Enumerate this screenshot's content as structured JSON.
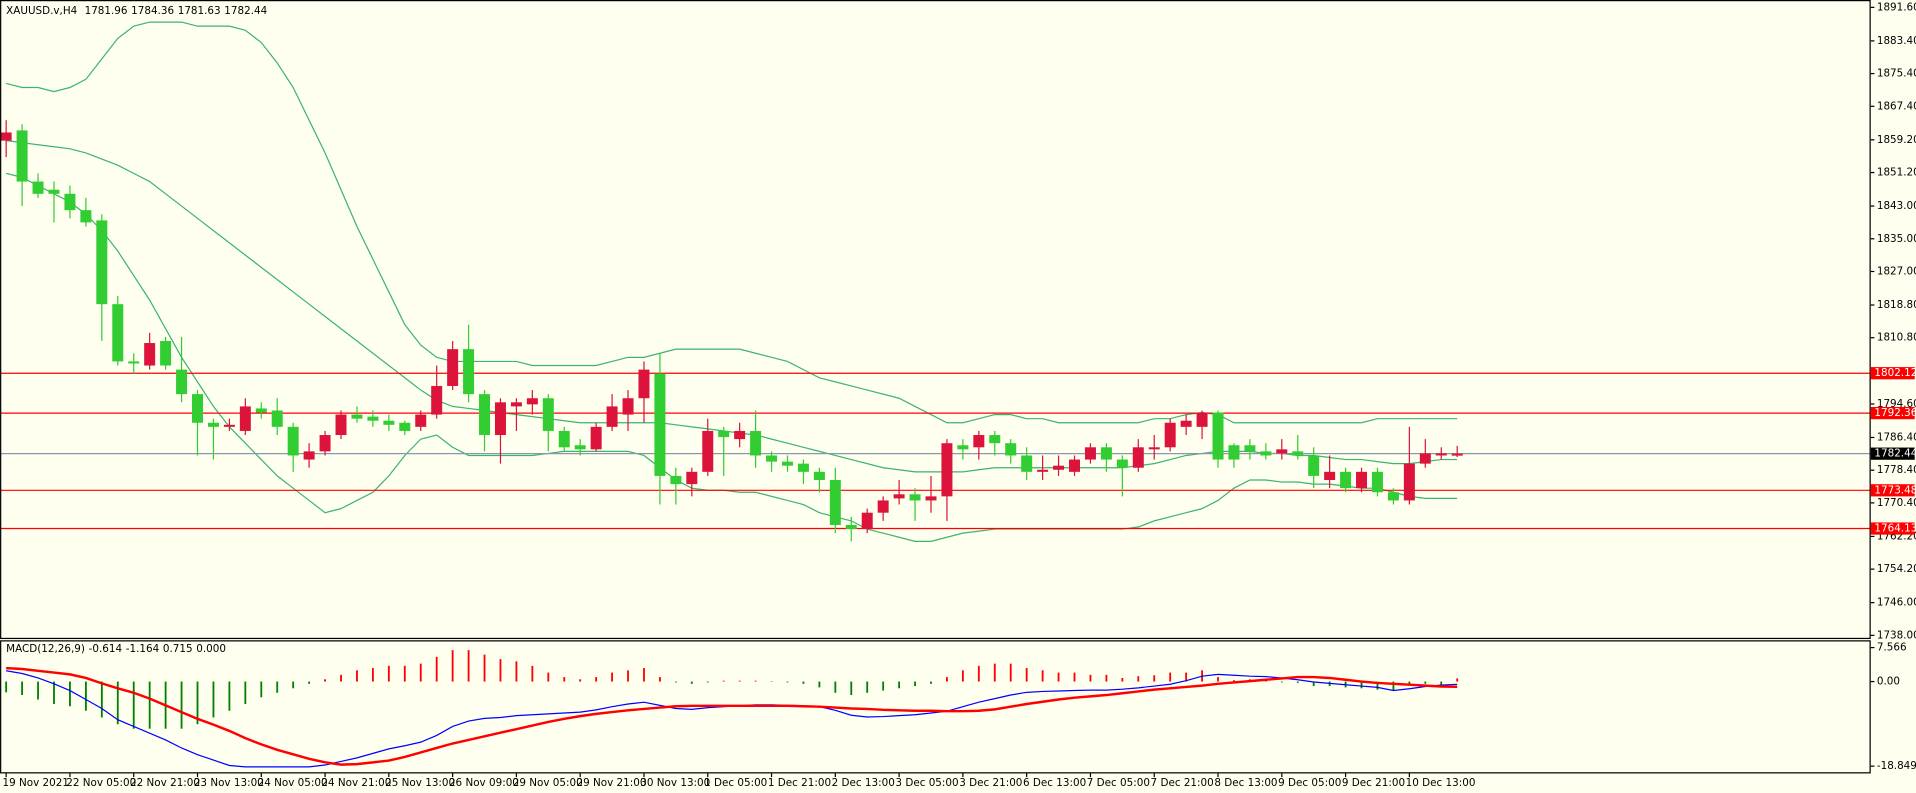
{
  "chart_data": [
    {
      "type": "candlestick",
      "title": "XAUUSD.v,H4",
      "categories": [
        "19 Nov 2021",
        null,
        null,
        null,
        "22 Nov 05:00",
        null,
        null,
        null,
        "22 Nov 21:00",
        null,
        null,
        null,
        "23 Nov 13:00",
        null,
        null,
        null,
        "24 Nov 05:00",
        null,
        null,
        null,
        "24 Nov 21:00",
        null,
        null,
        null,
        "25 Nov 13:00",
        null,
        null,
        null,
        "26 Nov 09:00",
        null,
        null,
        null,
        "29 Nov 05:00",
        null,
        null,
        null,
        "29 Nov 21:00",
        null,
        null,
        null,
        "30 Nov 13:00",
        null,
        null,
        null,
        "1 Dec 05:00",
        null,
        null,
        null,
        "1 Dec 21:00",
        null,
        null,
        null,
        "2 Dec 13:00",
        null,
        null,
        null,
        "3 Dec 05:00",
        null,
        null,
        null,
        "3 Dec 21:00",
        null,
        null,
        null,
        "6 Dec 13:00",
        null,
        null,
        null,
        "7 Dec 05:00",
        null,
        null,
        null,
        "7 Dec 21:00",
        null,
        null,
        null,
        "8 Dec 13:00",
        null,
        null,
        null,
        "9 Dec 05:00",
        null,
        null,
        null,
        "9 Dec 21:00",
        null,
        null,
        null,
        "10 Dec 13:00",
        null,
        null,
        null
      ],
      "open": [
        1859,
        1861.5,
        1849,
        1847,
        1846,
        1842,
        1839.5,
        1819,
        1805,
        1804,
        1810,
        1803,
        1797,
        1790,
        1789,
        1788,
        1793.5,
        1793,
        1789,
        1781,
        1783,
        1787,
        1792,
        1791.5,
        1790.5,
        1790,
        1789,
        1792,
        1799,
        1808,
        1797,
        1787,
        1794,
        1794.5,
        1796,
        1788,
        1784.5,
        1783.5,
        1789,
        1792,
        1796,
        1802,
        1777,
        1775,
        1778,
        1788,
        1786,
        1788,
        1782,
        1780.5,
        1780,
        1778,
        1776,
        1765,
        1764,
        1768,
        1771.5,
        1772.5,
        1771,
        1772,
        1784.5,
        1784,
        1787,
        1785,
        1782,
        1778,
        1778.5,
        1778,
        1781,
        1784,
        1781,
        1779,
        1783.5,
        1784,
        1789,
        1789,
        1792.5,
        1784.5,
        1784.5,
        1783,
        1782.5,
        1783,
        1782,
        1776,
        1778,
        1774,
        1778,
        1773,
        1771,
        1780,
        1782,
        1781.96
      ],
      "high": [
        1864,
        1863,
        1851,
        1849,
        1848,
        1845,
        1841,
        1821,
        1807,
        1812,
        1811,
        1811,
        1798,
        1791,
        1791,
        1796,
        1795,
        1796,
        1790,
        1785,
        1788,
        1793,
        1794,
        1793,
        1792,
        1790.5,
        1793,
        1804,
        1810,
        1814,
        1798,
        1796,
        1796,
        1798,
        1797,
        1789,
        1786,
        1790,
        1797,
        1798,
        1805,
        1807,
        1779,
        1779,
        1791,
        1789,
        1790,
        1793,
        1783,
        1782,
        1781,
        1779,
        1779,
        1767,
        1769,
        1772,
        1776,
        1774,
        1777,
        1786,
        1786,
        1788,
        1788,
        1786,
        1784,
        1782,
        1782,
        1782,
        1785,
        1785,
        1782,
        1786,
        1787,
        1791,
        1792,
        1793,
        1793,
        1785,
        1786,
        1785,
        1786,
        1787,
        1784,
        1782,
        1779,
        1779,
        1779,
        1774,
        1789,
        1786,
        1784,
        1784.36
      ],
      "low": [
        1855,
        1843,
        1845,
        1839,
        1840,
        1838,
        1810,
        1804,
        1802,
        1803,
        1803,
        1795,
        1782,
        1781,
        1788,
        1787,
        1791,
        1787,
        1778,
        1779,
        1782,
        1786,
        1790,
        1789,
        1788,
        1787,
        1788,
        1791,
        1798,
        1795,
        1783,
        1780,
        1788,
        1792,
        1783,
        1783,
        1782,
        1783,
        1788,
        1788,
        1790,
        1770,
        1770,
        1772,
        1777,
        1777,
        1784,
        1779,
        1778,
        1778,
        1775,
        1773,
        1763,
        1761,
        1763,
        1766,
        1770,
        1766,
        1768,
        1766,
        1781,
        1781,
        1782,
        1780,
        1776,
        1776,
        1777,
        1777,
        1780,
        1778,
        1772,
        1778,
        1781,
        1783,
        1787,
        1786,
        1779,
        1779,
        1781,
        1781,
        1781,
        1781,
        1774,
        1774,
        1773,
        1773,
        1772,
        1770,
        1770,
        1779,
        1781,
        1781.63
      ],
      "close": [
        1861,
        1849,
        1846,
        1846,
        1842,
        1839,
        1819,
        1805,
        1804.5,
        1809.5,
        1804,
        1797,
        1790,
        1789,
        1789.5,
        1794,
        1792.5,
        1789,
        1782,
        1783,
        1787,
        1792,
        1791,
        1790.5,
        1789.5,
        1788,
        1792,
        1799,
        1808,
        1797,
        1787,
        1795,
        1795,
        1796,
        1788,
        1784,
        1783.5,
        1789,
        1794,
        1796,
        1803,
        1777,
        1775,
        1778,
        1788,
        1786.5,
        1788,
        1782,
        1780.5,
        1779.5,
        1778,
        1776,
        1765,
        1764,
        1768,
        1771,
        1772.5,
        1771,
        1772,
        1785,
        1783.5,
        1787,
        1785,
        1782,
        1778,
        1778.5,
        1779.5,
        1781,
        1784,
        1781,
        1779,
        1784,
        1784,
        1790,
        1790.5,
        1792.5,
        1781,
        1781,
        1783,
        1782,
        1783.5,
        1782,
        1777,
        1778,
        1774,
        1778,
        1773,
        1771,
        1780,
        1782.5,
        1782.5,
        1782.44
      ],
      "up_color": "#dc143c",
      "down_color": "#32cd32",
      "bands": [
        {
          "color": "#3cb371",
          "values": [
            1873,
            1872,
            1872,
            1871,
            1872,
            1874,
            1879,
            1884,
            1887,
            1888,
            1888,
            1888,
            1887,
            1887,
            1887,
            1886,
            1883,
            1878,
            1872,
            1864,
            1856,
            1847,
            1838,
            1830,
            1822,
            1814,
            1809,
            1806,
            1805,
            1805,
            1805,
            1805,
            1805,
            1804,
            1804,
            1804,
            1804,
            1804,
            1805,
            1806,
            1806,
            1807,
            1808,
            1808,
            1808,
            1808,
            1808,
            1807,
            1806,
            1805,
            1803,
            1801,
            1800,
            1799,
            1798,
            1797,
            1796,
            1794,
            1792,
            1790,
            1790,
            1791,
            1792,
            1792,
            1791,
            1791,
            1790,
            1790,
            1790,
            1790,
            1790,
            1790,
            1791,
            1791,
            1792,
            1792.5,
            1792,
            1790,
            1790,
            1790,
            1790,
            1790,
            1790,
            1790,
            1790,
            1790,
            1791,
            1791,
            1791,
            1791,
            1791,
            1791
          ]
        },
        {
          "color": "#3cb371",
          "values": [
            1859,
            1858.5,
            1858,
            1857.5,
            1857,
            1856,
            1854.5,
            1853,
            1851,
            1849,
            1846,
            1843,
            1840,
            1837,
            1834,
            1831,
            1828,
            1825,
            1822,
            1819,
            1816,
            1813,
            1810,
            1807,
            1804,
            1801,
            1798,
            1795.5,
            1794,
            1793.5,
            1793,
            1792.5,
            1792,
            1791.5,
            1791,
            1790.5,
            1790,
            1790,
            1790,
            1790,
            1790,
            1790,
            1789.5,
            1789,
            1788.5,
            1788,
            1787.5,
            1787,
            1786,
            1785,
            1784,
            1783,
            1782,
            1781,
            1780,
            1779,
            1778.5,
            1778,
            1778,
            1778,
            1778,
            1778.5,
            1779,
            1779,
            1779,
            1779,
            1779,
            1779,
            1779,
            1779,
            1779,
            1779.5,
            1780,
            1781,
            1782,
            1782.5,
            1783,
            1783,
            1783,
            1782.5,
            1782.5,
            1782,
            1782,
            1781.5,
            1781,
            1781,
            1780.5,
            1780,
            1780,
            1780.5,
            1781,
            1781
          ]
        },
        {
          "color": "#3cb371",
          "values": [
            1851,
            1850,
            1848,
            1846,
            1844,
            1841,
            1837,
            1832,
            1826,
            1820,
            1813,
            1806,
            1800,
            1794,
            1789,
            1785,
            1781,
            1777,
            1774,
            1771,
            1768,
            1769,
            1771,
            1773,
            1777,
            1782,
            1786,
            1787,
            1784,
            1782,
            1782,
            1782,
            1782,
            1782,
            1782.5,
            1783,
            1783,
            1783,
            1783,
            1783,
            1782,
            1779,
            1776,
            1774,
            1773.5,
            1773.5,
            1773,
            1773,
            1772,
            1771,
            1770,
            1768,
            1767,
            1766,
            1764,
            1763,
            1762,
            1761,
            1761,
            1762,
            1763,
            1763.5,
            1764,
            1764,
            1764,
            1764,
            1764,
            1764,
            1764,
            1764,
            1764,
            1764.5,
            1766,
            1767,
            1768,
            1769,
            1771,
            1774,
            1776,
            1776,
            1775.5,
            1775.5,
            1775,
            1775,
            1774.5,
            1774,
            1774,
            1773,
            1772,
            1771.5,
            1771.5,
            1771.5
          ]
        }
      ],
      "levels": [
        {
          "value": 1802.12,
          "color": "#ff0000"
        },
        {
          "value": 1792.36,
          "color": "#ff0000"
        },
        {
          "value": 1773.48,
          "color": "#ff0000"
        },
        {
          "value": 1764.13,
          "color": "#ff0000"
        }
      ],
      "price_line_color": "#8899aa",
      "ylim": [
        1737.4,
        1893.4
      ],
      "yticks": [
        {
          "value": 1891.6,
          "label": "1891.60"
        },
        {
          "value": 1883.4,
          "label": "1883.40"
        },
        {
          "value": 1875.4,
          "label": "1875.40"
        },
        {
          "value": 1867.4,
          "label": "1867.40"
        },
        {
          "value": 1859.2,
          "label": "1859.20"
        },
        {
          "value": 1851.2,
          "label": "1851.20"
        },
        {
          "value": 1843,
          "label": "1843.00"
        },
        {
          "value": 1835,
          "label": "1835.00"
        },
        {
          "value": 1827,
          "label": "1827.00"
        },
        {
          "value": 1818.8,
          "label": "1818.80"
        },
        {
          "value": 1810.8,
          "label": "1810.80"
        },
        {
          "value": 1794.6,
          "label": "1794.60"
        },
        {
          "value": 1786.4,
          "label": "1786.40"
        },
        {
          "value": 1778.4,
          "label": "1778.40"
        },
        {
          "value": 1770.4,
          "label": "1770.40"
        },
        {
          "value": 1762.2,
          "label": "1762.20"
        },
        {
          "value": 1754.2,
          "label": "1754.20"
        },
        {
          "value": 1746,
          "label": "1746.00"
        },
        {
          "value": 1738,
          "label": "1738.00"
        }
      ]
    },
    {
      "type": "macd",
      "title": "MACD(12,26,9)",
      "histogram": {
        "up_color": "#ff0000",
        "down_color": "#008000",
        "values": [
          -2.4,
          -3,
          -4,
          -5,
          -5.5,
          -6.5,
          -8,
          -9.5,
          -10.5,
          -10.5,
          -10.5,
          -10.5,
          -9.5,
          -8,
          -6.5,
          -5,
          -3.5,
          -2.5,
          -1.5,
          -0.5,
          0.5,
          1.5,
          2.5,
          3,
          3.5,
          3.5,
          4,
          5.5,
          7,
          7,
          6,
          5,
          4.5,
          3.5,
          2,
          1,
          0.5,
          1,
          2,
          2.5,
          3,
          1,
          -0.2,
          -0.5,
          -0.2,
          0.2,
          0.2,
          0.2,
          0.1,
          -0.2,
          -0.5,
          -1.3,
          -2.5,
          -3,
          -2.5,
          -2,
          -1.5,
          -1,
          -0.5,
          1,
          2.5,
          3.5,
          4,
          4,
          3,
          2.5,
          2,
          2,
          1.5,
          1.5,
          0.8,
          1.2,
          1.4,
          2,
          2,
          2.5,
          1,
          0.3,
          0.5,
          0.2,
          -0.2,
          -0.3,
          -1,
          -1,
          -1.3,
          -1.5,
          -1.8,
          -2,
          -0.8,
          -0.5,
          -0.8,
          0.715
        ]
      },
      "series": [
        {
          "color": "#0000ff",
          "width": 1,
          "values": [
            2.4,
            1.8,
            0.8,
            -0.5,
            -2,
            -4,
            -6,
            -8.5,
            -10,
            -11.5,
            -13,
            -14.8,
            -16.3,
            -17.5,
            -18.7,
            -19,
            -19,
            -19,
            -19,
            -19,
            -18.6,
            -17.8,
            -17,
            -16,
            -15,
            -14.3,
            -13.5,
            -12,
            -10,
            -8.8,
            -8.2,
            -8,
            -7.6,
            -7.4,
            -7.2,
            -7,
            -6.8,
            -6.3,
            -5.6,
            -5,
            -4.6,
            -5.3,
            -6,
            -6.2,
            -5.8,
            -5.6,
            -5.4,
            -5.2,
            -5.2,
            -5.3,
            -5.4,
            -5.6,
            -6.4,
            -7.5,
            -7.9,
            -7.8,
            -7.6,
            -7.4,
            -7,
            -6.6,
            -5.6,
            -4.6,
            -3.8,
            -3,
            -2.4,
            -2.2,
            -2.1,
            -2,
            -1.9,
            -1.9,
            -1.7,
            -1.4,
            -1,
            -0.6,
            0.2,
            1.2,
            1.6,
            1.4,
            1.2,
            1.1,
            0.8,
            0.4,
            -0.1,
            -0.4,
            -0.7,
            -1,
            -1.3,
            -2,
            -1.6,
            -1.1,
            -0.8,
            -0.614
          ]
        },
        {
          "color": "#ff0000",
          "width": 2,
          "values": [
            3,
            2.8,
            2.4,
            2,
            1.6,
            0.8,
            -0.4,
            -1.5,
            -2.5,
            -3.8,
            -5.3,
            -6.8,
            -8.3,
            -9.6,
            -11,
            -12.6,
            -14,
            -15.2,
            -16.2,
            -17.2,
            -18,
            -18.5,
            -18.4,
            -18,
            -17.6,
            -16.8,
            -15.8,
            -14.8,
            -13.8,
            -13,
            -12.2,
            -11.4,
            -10.6,
            -9.8,
            -9,
            -8.3,
            -7.7,
            -7.2,
            -6.8,
            -6.4,
            -6.1,
            -5.8,
            -5.5,
            -5.4,
            -5.4,
            -5.4,
            -5.4,
            -5.4,
            -5.4,
            -5.4,
            -5.5,
            -5.6,
            -5.8,
            -6,
            -6.1,
            -6.3,
            -6.4,
            -6.5,
            -6.5,
            -6.6,
            -6.6,
            -6.5,
            -6.2,
            -5.6,
            -5,
            -4.5,
            -4,
            -3.6,
            -3.3,
            -3,
            -2.6,
            -2.2,
            -1.8,
            -1.5,
            -1.2,
            -0.9,
            -0.5,
            -0.2,
            0.1,
            0.4,
            0.7,
            1,
            1,
            0.8,
            0.4,
            0,
            -0.3,
            -0.5,
            -0.7,
            -0.9,
            -1.1,
            -1.164
          ]
        }
      ],
      "extra_label": "0.000",
      "ylim": [
        -20.2,
        9.2
      ],
      "yticks": [
        7.566,
        {
          "value": 0,
          "label": "0.00"
        },
        -18.849
      ]
    }
  ]
}
